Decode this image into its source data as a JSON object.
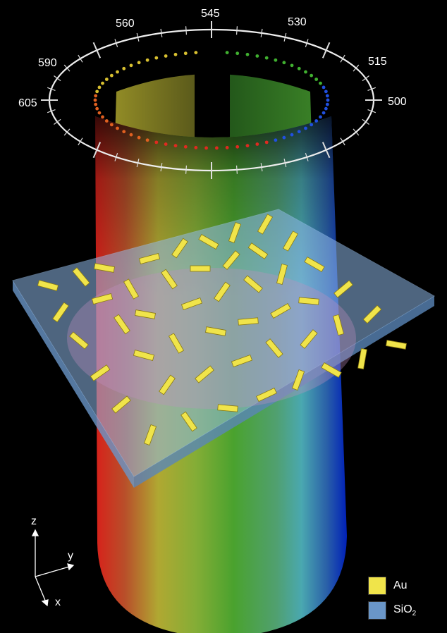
{
  "wavelength_ring": {
    "tick_labels": [
      "605",
      "590",
      "560",
      "545",
      "530",
      "515",
      "500"
    ]
  },
  "axes": {
    "z": "z",
    "y": "y",
    "x": "x"
  },
  "legend": [
    {
      "label": "Au",
      "color": "#f0e44a"
    },
    {
      "label": "SiO",
      "subscript": "2",
      "color": "#6a96c8"
    }
  ],
  "colors": {
    "background": "#000000",
    "rod": "#f0e44a",
    "substrate": "#6a96c8"
  }
}
